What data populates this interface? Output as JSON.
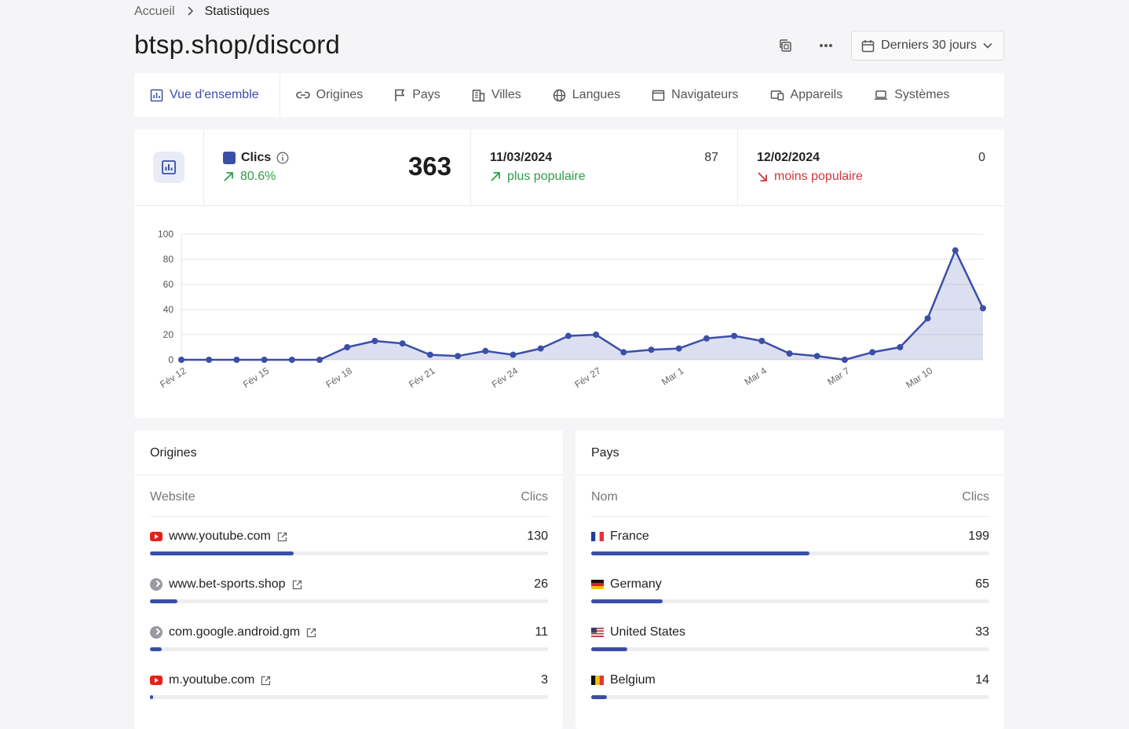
{
  "breadcrumb": {
    "home": "Accueil",
    "current": "Statistiques"
  },
  "page": {
    "title": "btsp.shop/discord"
  },
  "actions": {
    "date_range": "Derniers 30 jours"
  },
  "tabs": [
    {
      "label": "Vue d'ensemble",
      "icon": "bar-chart-icon"
    },
    {
      "label": "Origines",
      "icon": "link-icon"
    },
    {
      "label": "Pays",
      "icon": "flag-icon"
    },
    {
      "label": "Villes",
      "icon": "building-icon"
    },
    {
      "label": "Langues",
      "icon": "globe-icon"
    },
    {
      "label": "Navigateurs",
      "icon": "browser-window-icon"
    },
    {
      "label": "Appareils",
      "icon": "devices-icon"
    },
    {
      "label": "Systèmes",
      "icon": "laptop-icon"
    }
  ],
  "stats": {
    "clicks": {
      "label": "Clics",
      "change": "80.6%",
      "total": "363"
    },
    "best": {
      "date": "11/03/2024",
      "value": "87",
      "note": "plus populaire"
    },
    "worst": {
      "date": "12/02/2024",
      "value": "0",
      "note": "moins populaire"
    }
  },
  "colors": {
    "accent": "#3b4fa8",
    "positive": "#2e9d4a",
    "negative": "#d0373b"
  },
  "chart_data": {
    "type": "area",
    "x": [
      "Fév 12",
      "Fév 13",
      "Fév 14",
      "Fév 15",
      "Fév 16",
      "Fév 17",
      "Fév 18",
      "Fév 19",
      "Fév 20",
      "Fév 21",
      "Fév 22",
      "Fév 23",
      "Fév 24",
      "Fév 25",
      "Fév 26",
      "Fév 27",
      "Fév 28",
      "Fév 29",
      "Mar 1",
      "Mar 2",
      "Mar 3",
      "Mar 4",
      "Mar 5",
      "Mar 6",
      "Mar 7",
      "Mar 8",
      "Mar 9",
      "Mar 10",
      "Mar 11",
      "Mar 12"
    ],
    "series": [
      {
        "name": "Clics",
        "values": [
          0,
          0,
          0,
          0,
          0,
          0,
          10,
          15,
          13,
          4,
          3,
          7,
          4,
          9,
          19,
          20,
          6,
          8,
          9,
          17,
          19,
          15,
          5,
          3,
          0,
          6,
          10,
          33,
          87,
          41
        ]
      }
    ],
    "tick_labels": [
      "Fév 12",
      "Fév 15",
      "Fév 18",
      "Fév 21",
      "Fév 24",
      "Fév 27",
      "Mar 1",
      "Mar 4",
      "Mar 7",
      "Mar 10"
    ],
    "yticks": [
      0,
      20,
      40,
      60,
      80,
      100
    ],
    "ylim": [
      0,
      100
    ],
    "grid": true,
    "color": "#3b4fa8"
  },
  "origins": {
    "title": "Origines",
    "col_name": "Website",
    "col_value": "Clics",
    "items": [
      {
        "label": "www.youtube.com",
        "value": "130",
        "icon": "youtube-icon",
        "share": 0.36
      },
      {
        "label": "www.bet-sports.shop",
        "value": "26",
        "icon": "generic-site-icon",
        "share": 0.07
      },
      {
        "label": "com.google.android.gm",
        "value": "11",
        "icon": "generic-site-icon",
        "share": 0.03
      },
      {
        "label": "m.youtube.com",
        "value": "3",
        "icon": "youtube-icon",
        "share": 0.008
      }
    ]
  },
  "countries": {
    "title": "Pays",
    "col_name": "Nom",
    "col_value": "Clics",
    "items": [
      {
        "label": "France",
        "value": "199",
        "icon": "france-flag-icon",
        "share": 0.548
      },
      {
        "label": "Germany",
        "value": "65",
        "icon": "germany-flag-icon",
        "share": 0.179
      },
      {
        "label": "United States",
        "value": "33",
        "icon": "usa-flag-icon",
        "share": 0.091
      },
      {
        "label": "Belgium",
        "value": "14",
        "icon": "belgium-flag-icon",
        "share": 0.039
      }
    ]
  }
}
